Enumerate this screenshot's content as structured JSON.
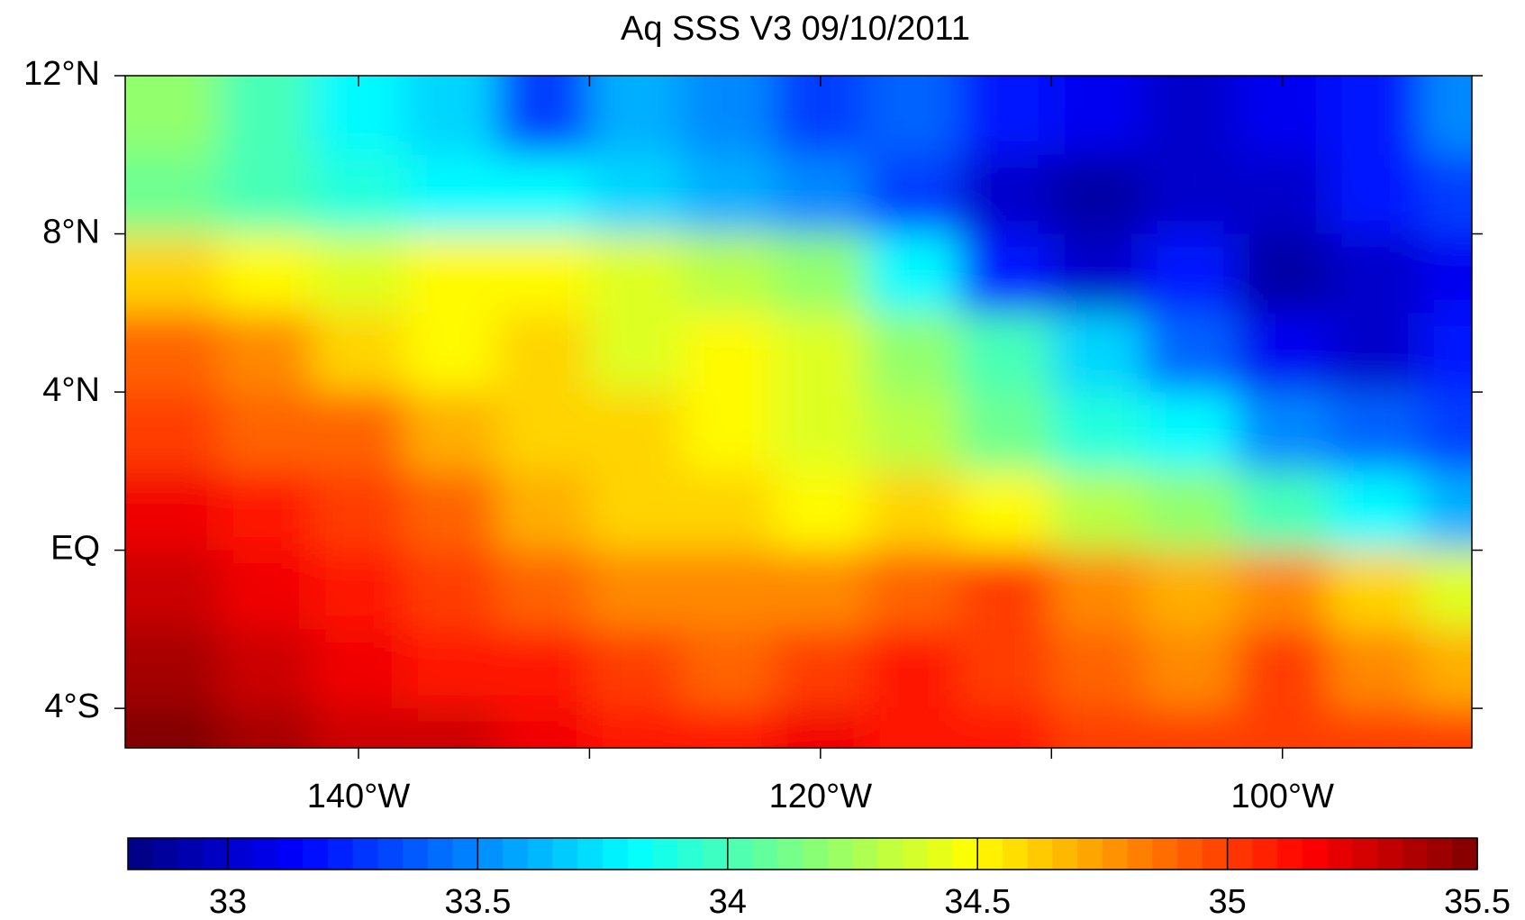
{
  "chart_data": {
    "type": "heatmap",
    "title": "Aq SSS V3   09/10/2011",
    "lon_edges": [
      -150,
      -146,
      -142,
      -138,
      -134,
      -130,
      -126,
      -122,
      -118,
      -114,
      -110,
      -106,
      -102,
      -98,
      -94,
      -92
    ],
    "lat_edges": [
      12,
      10,
      8,
      6,
      4,
      2,
      0,
      -2,
      -4,
      -5
    ],
    "values": [
      [
        34.2,
        34.0,
        33.8,
        33.7,
        33.3,
        33.6,
        33.5,
        33.3,
        33.4,
        33.2,
        33.1,
        33.0,
        33.1,
        33.2,
        33.5
      ],
      [
        34.1,
        34.0,
        33.9,
        33.8,
        33.8,
        33.7,
        33.6,
        33.5,
        33.3,
        33.0,
        32.9,
        33.0,
        33.0,
        33.2,
        33.3
      ],
      [
        34.6,
        34.5,
        34.4,
        34.5,
        34.5,
        34.4,
        34.3,
        34.2,
        33.8,
        33.2,
        33.0,
        33.2,
        32.9,
        33.0,
        33.1
      ],
      [
        34.9,
        34.8,
        34.6,
        34.5,
        34.6,
        34.4,
        34.5,
        34.4,
        34.2,
        34.0,
        33.7,
        33.4,
        33.1,
        33.0,
        33.2
      ],
      [
        35.0,
        34.9,
        34.9,
        34.7,
        34.6,
        34.6,
        34.5,
        34.4,
        34.3,
        34.1,
        33.9,
        33.8,
        33.5,
        33.4,
        33.3
      ],
      [
        35.2,
        35.1,
        35.0,
        34.9,
        34.7,
        34.6,
        34.6,
        34.5,
        34.6,
        34.5,
        34.3,
        34.2,
        34.0,
        33.8,
        33.6
      ],
      [
        35.3,
        35.2,
        35.1,
        35.0,
        34.9,
        34.8,
        34.8,
        34.8,
        34.9,
        35.0,
        34.8,
        34.7,
        34.8,
        34.6,
        34.4
      ],
      [
        35.4,
        35.3,
        35.2,
        35.1,
        35.1,
        35.0,
        34.9,
        35.0,
        35.1,
        35.0,
        34.9,
        34.8,
        35.0,
        34.8,
        34.7
      ],
      [
        35.5,
        35.4,
        35.3,
        35.3,
        35.2,
        35.1,
        35.1,
        35.2,
        35.1,
        35.1,
        35.0,
        35.0,
        35.0,
        35.0,
        35.0
      ]
    ],
    "xlim": [
      -150.1,
      -91.8
    ],
    "ylim": [
      -5,
      12
    ],
    "xticks": [
      {
        "value": -140,
        "label": "140°W"
      },
      {
        "value": -120,
        "label": "120°W"
      },
      {
        "value": -100,
        "label": "100°W"
      }
    ],
    "xminorticks": [
      -130,
      -110
    ],
    "yticks": [
      {
        "value": 12,
        "label": "12°N"
      },
      {
        "value": 8,
        "label": "8°N"
      },
      {
        "value": 4,
        "label": "4°N"
      },
      {
        "value": 0,
        "label": "EQ"
      },
      {
        "value": -4,
        "label": "4°S"
      }
    ],
    "colormap": "jet",
    "clim": [
      32.8,
      35.5
    ],
    "cticks": [
      33,
      33.5,
      34,
      34.5,
      35,
      35.5
    ]
  }
}
